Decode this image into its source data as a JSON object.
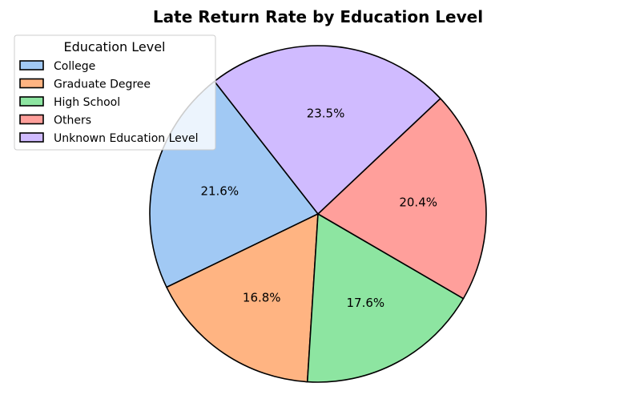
{
  "chart_data": {
    "type": "pie",
    "title": "Late Return Rate by Education Level",
    "legend": {
      "title": "Education Level",
      "placement": "upper-left"
    },
    "start_angle_deg": 128,
    "direction": "counterclockwise",
    "slices": [
      {
        "label": "College",
        "value": 21.6,
        "pct_label": "21.6%",
        "color": "#a1c9f4"
      },
      {
        "label": "Graduate Degree",
        "value": 16.8,
        "pct_label": "16.8%",
        "color": "#ffb482"
      },
      {
        "label": "High School",
        "value": 17.6,
        "pct_label": "17.6%",
        "color": "#8de5a1"
      },
      {
        "label": "Others",
        "value": 20.4,
        "pct_label": "20.4%",
        "color": "#ff9f9b"
      },
      {
        "label": "Unknown Education Level",
        "value": 23.5,
        "pct_label": "23.5%",
        "color": "#d0bbff"
      }
    ]
  }
}
